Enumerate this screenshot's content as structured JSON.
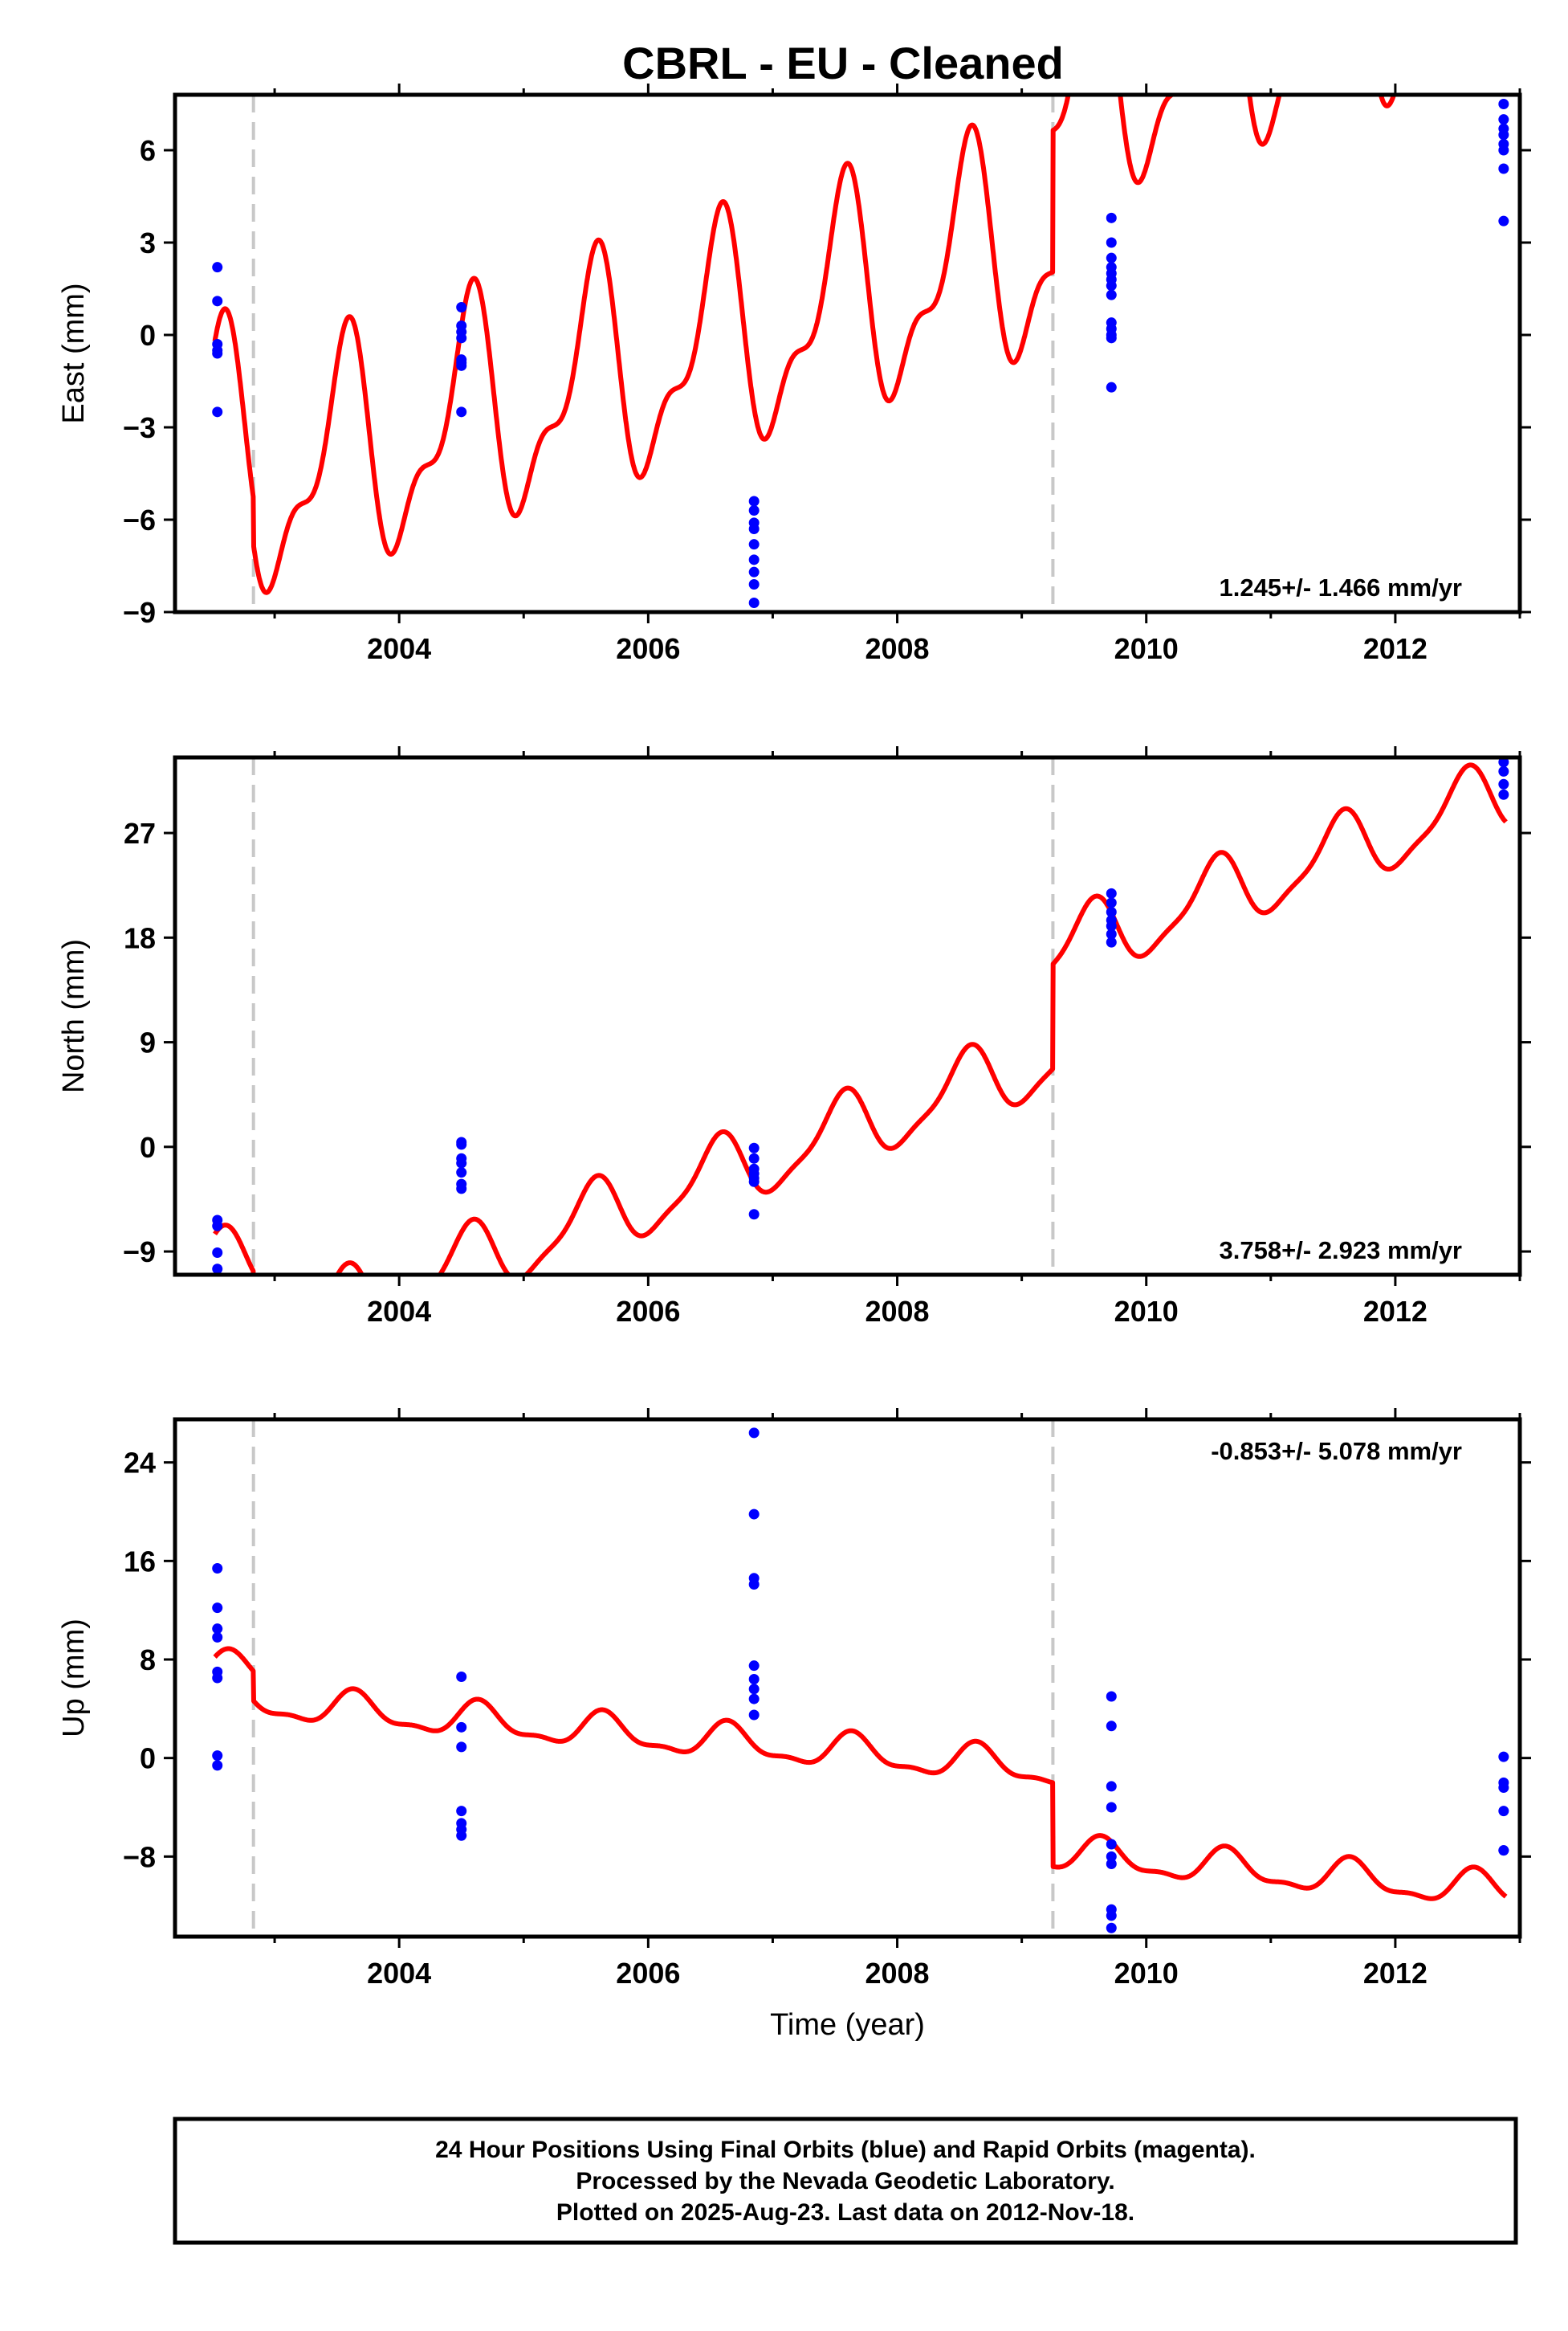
{
  "title": "CBRL  - EU - Cleaned",
  "footer": {
    "lines": [
      "24 Hour Positions Using Final Orbits (blue) and Rapid Orbits (magenta).",
      "Processed by the Nevada Geodetic Laboratory.",
      "Plotted on 2025-Aug-23. Last data on 2012-Nov-18."
    ]
  },
  "colors": {
    "data": "#0000ff",
    "model": "#ff0000",
    "breaks": "#c8c8c8"
  },
  "chart_data": [
    {
      "type": "scatter",
      "ylabel": "East (mm)",
      "xlabel": "",
      "xlim": [
        2002.2,
        2013.0
      ],
      "ylim": [
        -9,
        7.8
      ],
      "xticks": [
        2004,
        2006,
        2008,
        2010,
        2012
      ],
      "xtick_labels": [
        "2004",
        "2006",
        "2008",
        "2010",
        "2012"
      ],
      "yticks": [
        -9,
        -6,
        -3,
        0,
        3,
        6
      ],
      "ytick_labels": [
        "−9",
        "−6",
        "−3",
        "0",
        "3",
        "6"
      ],
      "rate_label": "1.245+/- 1.466 mm/yr",
      "rate_position": "bottom-right",
      "breaks": [
        2002.83,
        2009.25
      ],
      "points": {
        "x": [
          2002.54,
          2002.54,
          2002.54,
          2002.54,
          2002.54,
          2002.54,
          2004.5,
          2004.5,
          2004.5,
          2004.5,
          2004.5,
          2004.5,
          2004.5,
          2004.5,
          2006.85,
          2006.85,
          2006.85,
          2006.85,
          2006.85,
          2006.85,
          2006.85,
          2006.85,
          2006.85,
          2009.72,
          2009.72,
          2009.72,
          2009.72,
          2009.72,
          2009.72,
          2009.72,
          2009.72,
          2009.72,
          2009.72,
          2009.72,
          2009.72,
          2009.72,
          2012.87,
          2012.87,
          2012.87,
          2012.87,
          2012.87,
          2012.87,
          2012.87,
          2012.87
        ],
        "y": [
          2.2,
          1.1,
          -0.3,
          -0.5,
          -0.6,
          -2.5,
          0.9,
          0.3,
          0.1,
          -0.1,
          -0.8,
          -0.9,
          -1.0,
          -2.5,
          -5.4,
          -5.7,
          -6.1,
          -6.3,
          -6.8,
          -7.3,
          -7.7,
          -8.1,
          -8.7,
          3.8,
          3.0,
          2.5,
          2.2,
          2.0,
          1.8,
          1.6,
          1.3,
          0.4,
          0.2,
          0.0,
          -0.1,
          -1.7,
          7.5,
          7.0,
          6.7,
          6.5,
          6.2,
          6.0,
          5.4,
          3.7
        ]
      },
      "model": {
        "offset": -0.9,
        "rate": 1.245,
        "t0": 2007.5,
        "amp_annual": 3.3,
        "phase_annual": 0.3,
        "amp_semi": 1.5,
        "phase_semi": 0.0,
        "steps": [
          {
            "t": 2002.83,
            "dy": -1.5
          },
          {
            "t": 2009.25,
            "dy": 4.6
          }
        ],
        "anchor_start": -0.2
      }
    },
    {
      "type": "scatter",
      "ylabel": "North (mm)",
      "xlabel": "",
      "xlim": [
        2002.2,
        2013.0
      ],
      "ylim": [
        -11,
        33.5
      ],
      "xticks": [
        2004,
        2006,
        2008,
        2010,
        2012
      ],
      "xtick_labels": [
        "2004",
        "2006",
        "2008",
        "2010",
        "2012"
      ],
      "yticks": [
        -9,
        0,
        9,
        18,
        27
      ],
      "ytick_labels": [
        "−9",
        "0",
        "9",
        "18",
        "27"
      ],
      "rate_label": "3.758+/- 2.923 mm/yr",
      "rate_position": "bottom-right",
      "breaks": [
        2002.83,
        2009.25
      ],
      "points": {
        "x": [
          2002.54,
          2002.54,
          2002.54,
          2002.54,
          2004.5,
          2004.5,
          2004.5,
          2004.5,
          2004.5,
          2004.5,
          2004.5,
          2006.85,
          2006.85,
          2006.85,
          2006.85,
          2006.85,
          2006.85,
          2006.85,
          2009.72,
          2009.72,
          2009.72,
          2009.72,
          2009.72,
          2009.72,
          2009.72,
          2012.87,
          2012.87,
          2012.87,
          2012.87
        ],
        "y": [
          -6.3,
          -6.8,
          -9.1,
          -10.5,
          0.4,
          0.2,
          -1.0,
          -1.4,
          -2.2,
          -3.2,
          -3.6,
          -0.1,
          -1.0,
          -1.9,
          -2.3,
          -2.7,
          -3.0,
          -5.8,
          21.8,
          21.0,
          20.2,
          19.5,
          19.0,
          18.3,
          17.6,
          33.1,
          32.3,
          31.2,
          30.3
        ]
      },
      "model": {
        "offset": 5.0,
        "rate": 3.758,
        "t0": 2007.5,
        "amp_annual": 3.0,
        "phase_annual": 0.3,
        "amp_semi": 0.8,
        "phase_semi": 0.5,
        "steps": [
          {
            "t": 2002.83,
            "dy": -7.0
          },
          {
            "t": 2009.25,
            "dy": 9.0
          }
        ],
        "anchor_start": -7.5
      }
    },
    {
      "type": "scatter",
      "ylabel": "Up (mm)",
      "xlabel": "Time (year)",
      "xlim": [
        2002.2,
        2013.0
      ],
      "ylim": [
        -14.5,
        27.5
      ],
      "xticks": [
        2004,
        2006,
        2008,
        2010,
        2012
      ],
      "xtick_labels": [
        "2004",
        "2006",
        "2008",
        "2010",
        "2012"
      ],
      "yticks": [
        -8,
        0,
        8,
        16,
        24
      ],
      "ytick_labels": [
        "−8",
        "0",
        "8",
        "16",
        "24"
      ],
      "rate_label": "-0.853+/- 5.078 mm/yr",
      "rate_position": "top-right",
      "breaks": [
        2002.83,
        2009.25
      ],
      "points": {
        "x": [
          2002.54,
          2002.54,
          2002.54,
          2002.54,
          2002.54,
          2002.54,
          2002.54,
          2002.54,
          2004.5,
          2004.5,
          2004.5,
          2004.5,
          2004.5,
          2004.5,
          2004.5,
          2006.85,
          2006.85,
          2006.85,
          2006.85,
          2006.85,
          2006.85,
          2006.85,
          2006.85,
          2006.85,
          2009.72,
          2009.72,
          2009.72,
          2009.72,
          2009.72,
          2009.72,
          2009.72,
          2009.72,
          2009.72,
          2009.72,
          2012.87,
          2012.87,
          2012.87,
          2012.87,
          2012.87,
          2012.87
        ],
        "y": [
          15.4,
          12.2,
          10.5,
          9.8,
          7.0,
          6.5,
          0.2,
          -0.6,
          6.6,
          2.5,
          0.9,
          -4.3,
          -5.3,
          -5.8,
          -6.3,
          26.4,
          19.8,
          14.6,
          14.1,
          7.5,
          6.4,
          5.6,
          4.8,
          3.5,
          5.0,
          2.6,
          -2.3,
          -4.0,
          -7.0,
          -8.0,
          -8.6,
          -12.3,
          -12.8,
          -13.8,
          0.1,
          -2.0,
          -2.4,
          -4.3,
          -7.5,
          -7.5
        ]
      },
      "model": {
        "offset": 6.0,
        "rate": -0.853,
        "t0": 2004.0,
        "amp_annual": 1.3,
        "phase_annual": 0.4,
        "amp_semi": 0.5,
        "phase_semi": 0.0,
        "steps": [
          {
            "t": 2002.83,
            "dy": -2.4
          },
          {
            "t": 2009.25,
            "dy": -6.8
          }
        ],
        "anchor_start": 8.2
      }
    }
  ]
}
